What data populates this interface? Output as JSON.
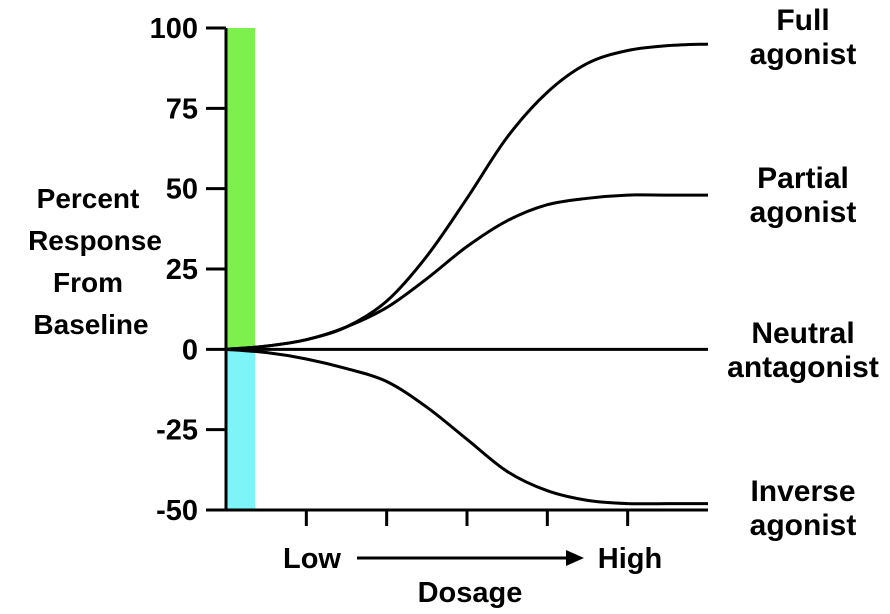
{
  "chart_data": {
    "type": "line",
    "title": "",
    "ylabel": [
      "Percent",
      "Response",
      "From",
      "Baseline"
    ],
    "xlabel": "Dosage",
    "x_axis_ends": {
      "low": "Low",
      "high": "High"
    },
    "yticks": [
      100,
      75,
      50,
      25,
      0,
      -25,
      -50
    ],
    "ytick_labels": [
      "100",
      "75",
      "50",
      "25",
      "0",
      "-25",
      "-50"
    ],
    "ylim": [
      -50,
      100
    ],
    "xlim": [
      0,
      6
    ],
    "xticks": [
      1,
      2,
      3,
      4,
      5
    ],
    "shaded_bands": [
      {
        "name": "positive-response",
        "from": 0,
        "to": 100,
        "color": "#7EF04E"
      },
      {
        "name": "negative-response",
        "from": -50,
        "to": 0,
        "color": "#7DF4F8"
      }
    ],
    "series": [
      {
        "name": "Full agonist",
        "label_lines": [
          "Full",
          "agonist"
        ],
        "x": [
          0,
          0.5,
          1,
          1.5,
          2,
          2.5,
          3,
          3.5,
          4,
          4.5,
          5,
          5.5,
          6
        ],
        "y": [
          0,
          1,
          3,
          7,
          15,
          29,
          47,
          66,
          80,
          89,
          93,
          94.5,
          95
        ]
      },
      {
        "name": "Partial agonist",
        "label_lines": [
          "Partial",
          "agonist"
        ],
        "x": [
          0,
          0.5,
          1,
          1.5,
          2,
          2.5,
          3,
          3.5,
          4,
          4.5,
          5,
          5.5,
          6
        ],
        "y": [
          0,
          1,
          3,
          7,
          13,
          22,
          32,
          40,
          45,
          47,
          48,
          48,
          48
        ]
      },
      {
        "name": "Neutral antagonist",
        "label_lines": [
          "Neutral",
          "antagonist"
        ],
        "x": [
          0,
          6
        ],
        "y": [
          0,
          0
        ]
      },
      {
        "name": "Inverse agonist",
        "label_lines": [
          "Inverse",
          "agonist"
        ],
        "x": [
          0,
          0.5,
          1,
          1.5,
          2,
          2.5,
          3,
          3.5,
          4,
          4.5,
          5,
          5.5,
          6
        ],
        "y": [
          0,
          -1,
          -3,
          -6,
          -10,
          -18,
          -28,
          -38,
          -44,
          -47,
          -48,
          -48,
          -48
        ]
      }
    ]
  }
}
